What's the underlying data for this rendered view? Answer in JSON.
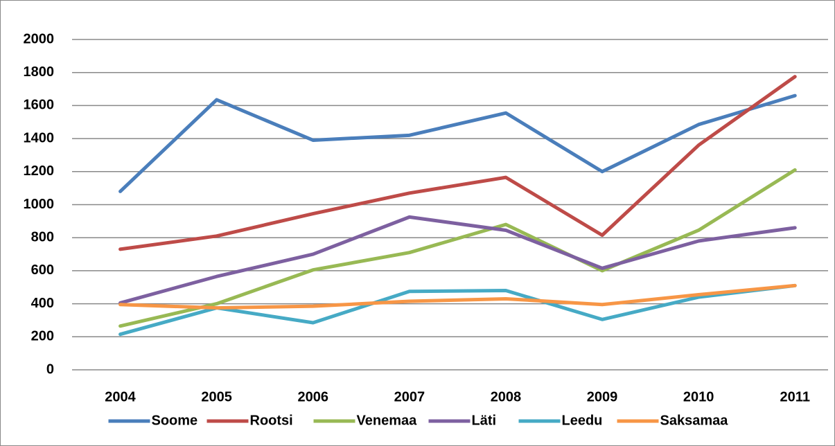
{
  "chart_data": {
    "type": "line",
    "categories": [
      "2004",
      "2005",
      "2006",
      "2007",
      "2008",
      "2009",
      "2010",
      "2011"
    ],
    "series": [
      {
        "name": "Soome",
        "color": "#4a7ebb",
        "values": [
          1080,
          1635,
          1390,
          1420,
          1555,
          1200,
          1485,
          1660
        ]
      },
      {
        "name": "Rootsi",
        "color": "#be4b48",
        "values": [
          730,
          810,
          945,
          1070,
          1165,
          815,
          1360,
          1775
        ]
      },
      {
        "name": "Venemaa",
        "color": "#98b954",
        "values": [
          265,
          400,
          605,
          710,
          880,
          600,
          845,
          1210
        ]
      },
      {
        "name": "Läti",
        "color": "#7d60a0",
        "values": [
          405,
          565,
          700,
          925,
          845,
          615,
          780,
          860
        ]
      },
      {
        "name": "Leedu",
        "color": "#46aac5",
        "values": [
          215,
          375,
          285,
          475,
          480,
          305,
          440,
          510
        ]
      },
      {
        "name": "Saksamaa",
        "color": "#f79646",
        "values": [
          395,
          375,
          385,
          415,
          430,
          395,
          455,
          510
        ]
      }
    ],
    "ylim": [
      0,
      2000
    ],
    "yticks": [
      0,
      200,
      400,
      600,
      800,
      1000,
      1200,
      1400,
      1600,
      1800,
      2000
    ],
    "grid": true,
    "legend": "bottom"
  }
}
